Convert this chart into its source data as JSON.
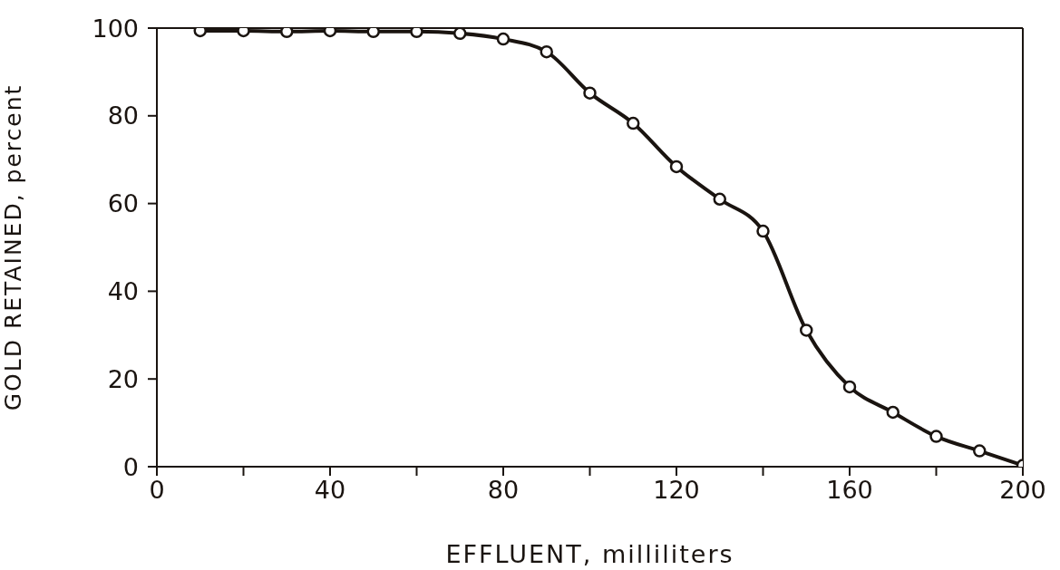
{
  "chart_data": {
    "type": "line",
    "xlabel": "EFFLUENT, milliliters",
    "ylabel": "GOLD RETAINED, percent",
    "x": [
      10,
      20,
      30,
      40,
      50,
      60,
      70,
      80,
      90,
      100,
      110,
      120,
      130,
      140,
      150,
      160,
      170,
      180,
      190,
      200
    ],
    "series": [
      {
        "color": "#1a1410",
        "values": [
          99.4,
          99.4,
          99.2,
          99.4,
          99.2,
          99.2,
          98.8,
          97.5,
          94.6,
          85.2,
          78.3,
          68.4,
          61.0,
          53.7,
          31.1,
          18.2,
          12.4,
          6.9,
          3.6,
          0.3
        ]
      }
    ],
    "xlim": [
      0,
      200
    ],
    "ylim": [
      0,
      100
    ],
    "xticks": [
      0,
      {
        "value": 20,
        "label": null
      },
      40,
      {
        "value": 60,
        "label": null
      },
      80,
      {
        "value": 100,
        "label": null
      },
      120,
      {
        "value": 140,
        "label": null
      },
      160,
      {
        "value": 180,
        "label": null
      },
      200
    ],
    "yticks": [
      0,
      20,
      40,
      60,
      80,
      100
    ],
    "marker": "circle",
    "line_style": "solid",
    "grid": false
  }
}
